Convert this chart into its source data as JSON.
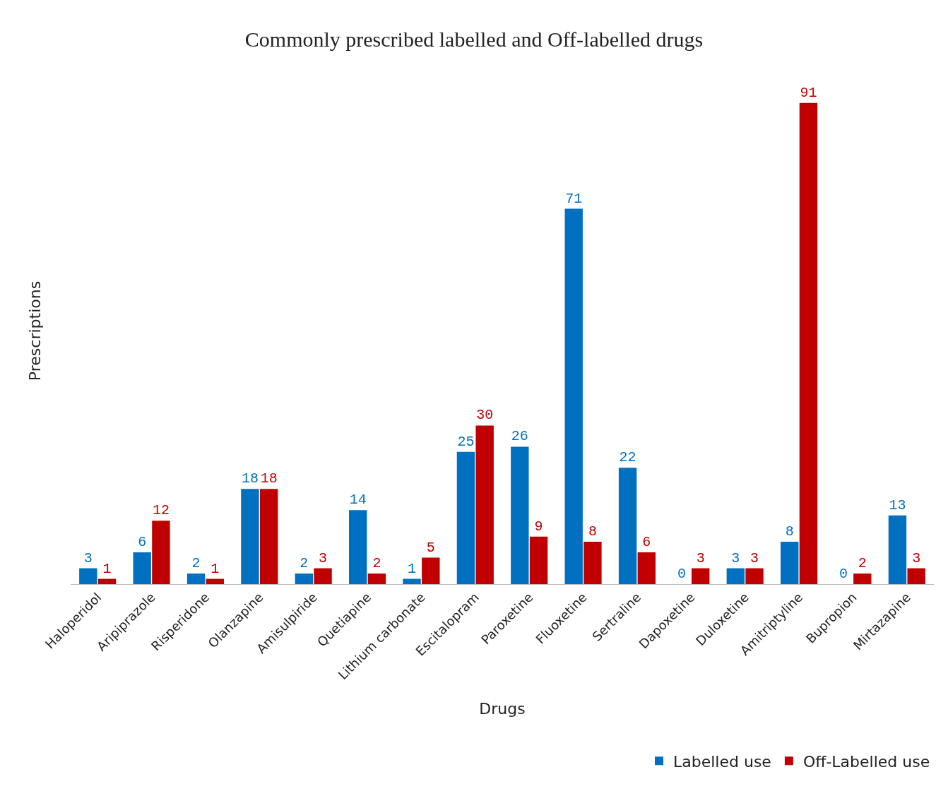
{
  "chart_data": {
    "type": "bar",
    "title": "Commonly prescribed labelled and Off-labelled drugs",
    "xlabel": "Drugs",
    "ylabel": "Prescriptions",
    "categories": [
      "Haloperidol",
      "Aripiprazole",
      "Risperidone",
      "Olanzapine",
      "Amisulpiride",
      "Quetiapine",
      "Lithium carbonate",
      "Escitalopram",
      "Paroxetine",
      "Fluoxetine",
      "Sertraline",
      "Dapoxetine",
      "Duloxetine",
      "Amitriptyline",
      "Bupropion",
      "Mirtazapine"
    ],
    "series": [
      {
        "name": "Labelled use",
        "color": "#0070c0",
        "values": [
          3,
          6,
          2,
          18,
          2,
          14,
          1,
          25,
          26,
          71,
          22,
          0,
          3,
          8,
          0,
          13
        ]
      },
      {
        "name": "Off-Labelled use",
        "color": "#c00000",
        "values": [
          1,
          12,
          1,
          18,
          3,
          2,
          5,
          30,
          9,
          8,
          6,
          3,
          3,
          91,
          2,
          3
        ]
      }
    ],
    "data_labels": true,
    "grid": false,
    "legend": "bottom right"
  }
}
